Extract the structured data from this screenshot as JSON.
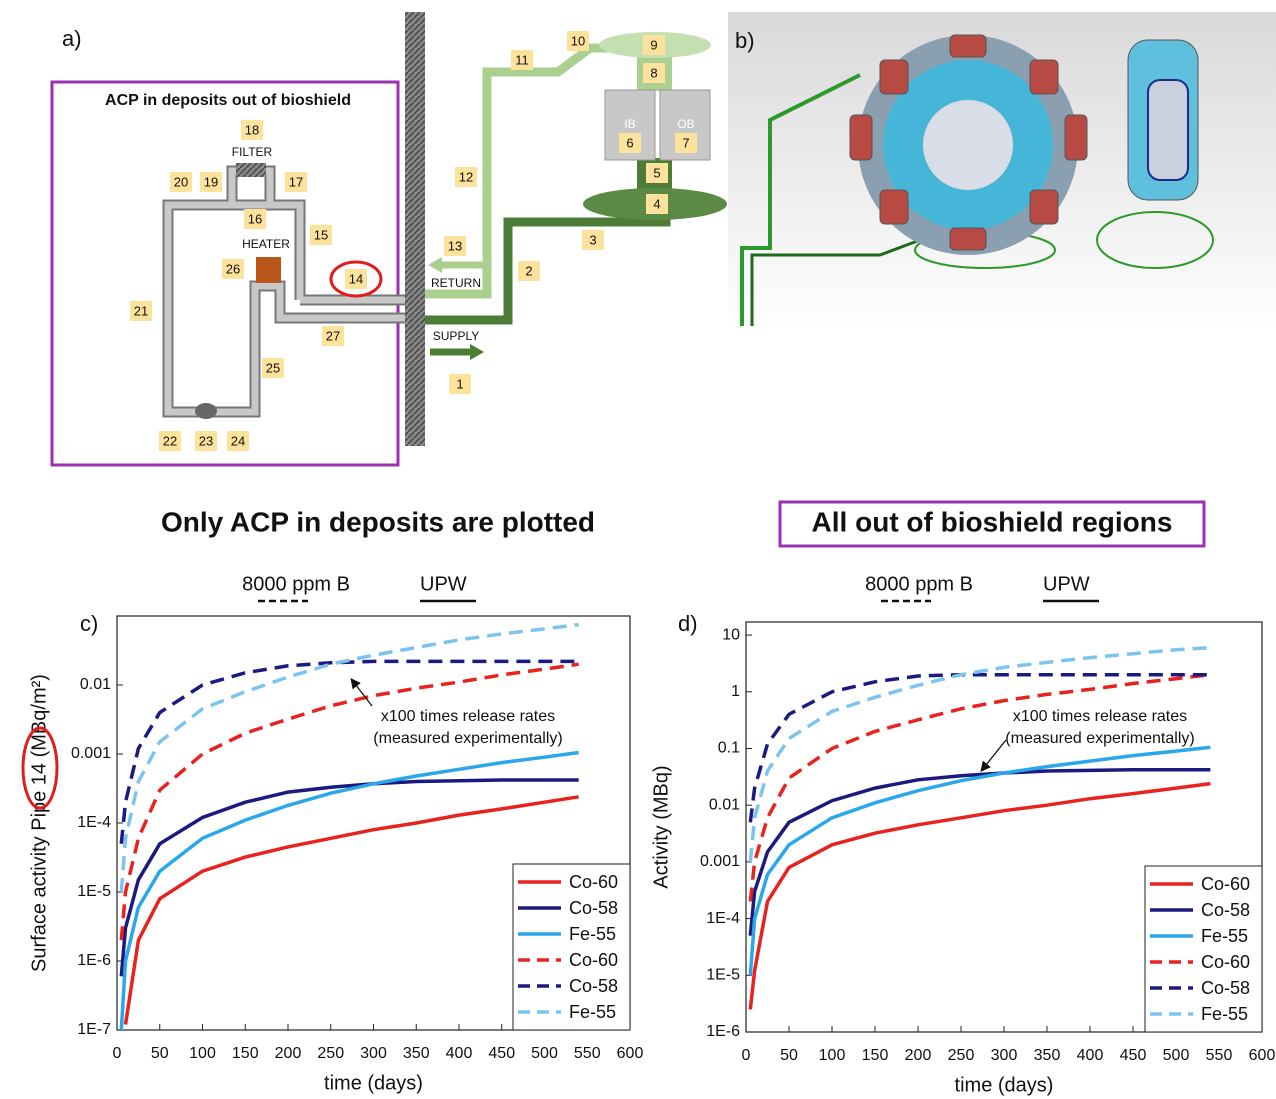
{
  "panel_a": {
    "label": "a)",
    "title": "ACP in deposits out of bioshield",
    "filter": "FILTER",
    "heater": "HEATER",
    "return": "RETURN",
    "supply": "SUPPLY",
    "ib": "IB",
    "ob": "OB",
    "nodes": [
      "1",
      "2",
      "3",
      "4",
      "5",
      "6",
      "7",
      "8",
      "9",
      "10",
      "11",
      "12",
      "13",
      "14",
      "15",
      "16",
      "17",
      "18",
      "19",
      "20",
      "21",
      "22",
      "23",
      "24",
      "25",
      "26",
      "27"
    ]
  },
  "panel_b": {
    "label": "b)"
  },
  "chart_data": [
    {
      "type": "line",
      "panel_label": "c)",
      "title": "Only ACP in deposits are plotted",
      "legend_header": [
        "8000 ppm B",
        "UPW"
      ],
      "annotation": [
        "x100 times release rates",
        "(measured experimentally)"
      ],
      "xlabel": "time (days)",
      "ylabel": "Surface activity Pipe 14 (MBq/m²)",
      "ylog": true,
      "legend": "lower right",
      "xlim": [
        0,
        600
      ],
      "xticks": [
        0,
        50,
        100,
        150,
        200,
        250,
        300,
        350,
        400,
        450,
        500,
        550,
        600
      ],
      "ylim": [
        1e-07,
        0.1
      ],
      "yticks": [
        {
          "value": 1e-07,
          "label": "1E-7"
        },
        {
          "value": 1e-06,
          "label": "1E-6"
        },
        {
          "value": 1e-05,
          "label": "1E-5"
        },
        {
          "value": 0.0001,
          "label": "1E-4"
        },
        0.001,
        0.01
      ],
      "x": [
        5,
        10,
        25,
        50,
        100,
        150,
        200,
        250,
        300,
        350,
        400,
        450,
        500,
        540
      ],
      "series": [
        {
          "name": "Co-60",
          "color": "#e8221f",
          "dashed": false,
          "values": [
            null,
            1.2e-07,
            2e-06,
            8e-06,
            2e-05,
            3.2e-05,
            4.5e-05,
            6e-05,
            8e-05,
            0.0001,
            0.00013,
            0.00016,
            0.0002,
            0.00024
          ]
        },
        {
          "name": "Co-58",
          "color": "#1a1a80",
          "dashed": false,
          "values": [
            6e-07,
            3e-06,
            1.5e-05,
            5e-05,
            0.00012,
            0.0002,
            0.00028,
            0.00033,
            0.00037,
            0.0004,
            0.00041,
            0.00042,
            0.00042,
            0.00042
          ]
        },
        {
          "name": "Fe-55",
          "color": "#2aa7ea",
          "dashed": false,
          "values": [
            1e-07,
            1e-06,
            6e-06,
            2e-05,
            6e-05,
            0.00011,
            0.00018,
            0.00027,
            0.00037,
            0.00048,
            0.0006,
            0.00075,
            0.0009,
            0.00105
          ]
        },
        {
          "name": "Co-60",
          "color": "#e8221f",
          "dashed": true,
          "values": [
            2e-06,
            1e-05,
            6e-05,
            0.0003,
            0.001,
            0.002,
            0.0032,
            0.005,
            0.007,
            0.009,
            0.011,
            0.014,
            0.017,
            0.02
          ]
        },
        {
          "name": "Co-58",
          "color": "#1a1a80",
          "dashed": true,
          "values": [
            5e-05,
            0.0002,
            0.0012,
            0.004,
            0.01,
            0.015,
            0.019,
            0.021,
            0.022,
            0.022,
            0.022,
            0.022,
            0.022,
            0.022
          ]
        },
        {
          "name": "Fe-55",
          "color": "#7cc4f0",
          "dashed": true,
          "values": [
            1e-05,
            6e-05,
            0.0004,
            0.0015,
            0.0045,
            0.008,
            0.013,
            0.02,
            0.027,
            0.035,
            0.045,
            0.055,
            0.065,
            0.075
          ]
        }
      ]
    },
    {
      "type": "line",
      "panel_label": "d)",
      "title": "All out of bioshield regions",
      "legend_header": [
        "8000 ppm B",
        "UPW"
      ],
      "annotation": [
        "x100 times release rates",
        "(measured experimentally)"
      ],
      "xlabel": "time (days)",
      "ylabel": "Activity (MBq)",
      "ylog": true,
      "legend": "lower right",
      "xlim": [
        0,
        600
      ],
      "xticks": [
        0,
        50,
        100,
        150,
        200,
        250,
        300,
        350,
        400,
        450,
        500,
        550,
        600
      ],
      "ylim": [
        1e-06,
        17
      ],
      "yticks": [
        {
          "value": 1e-06,
          "label": "1E-6"
        },
        {
          "value": 1e-05,
          "label": "1E-5"
        },
        {
          "value": 0.0001,
          "label": "1E-4"
        },
        0.001,
        0.01,
        0.1,
        1,
        10
      ],
      "x": [
        5,
        10,
        25,
        50,
        100,
        150,
        200,
        250,
        300,
        350,
        400,
        450,
        500,
        540
      ],
      "series": [
        {
          "name": "Co-60",
          "color": "#e8221f",
          "dashed": false,
          "values": [
            2.5e-06,
            1.2e-05,
            0.0002,
            0.0008,
            0.002,
            0.0032,
            0.0045,
            0.006,
            0.008,
            0.01,
            0.013,
            0.016,
            0.02,
            0.024
          ]
        },
        {
          "name": "Co-58",
          "color": "#1a1a80",
          "dashed": false,
          "values": [
            5e-05,
            0.0003,
            0.0015,
            0.005,
            0.012,
            0.02,
            0.028,
            0.033,
            0.037,
            0.04,
            0.041,
            0.042,
            0.042,
            0.042
          ]
        },
        {
          "name": "Fe-55",
          "color": "#2aa7ea",
          "dashed": false,
          "values": [
            1e-05,
            0.0001,
            0.0006,
            0.002,
            0.006,
            0.011,
            0.018,
            0.027,
            0.037,
            0.048,
            0.06,
            0.075,
            0.09,
            0.105
          ]
        },
        {
          "name": "Co-60",
          "color": "#e8221f",
          "dashed": true,
          "values": [
            0.0002,
            0.001,
            0.006,
            0.03,
            0.1,
            0.2,
            0.32,
            0.5,
            0.7,
            0.9,
            1.1,
            1.4,
            1.7,
            2
          ]
        },
        {
          "name": "Co-58",
          "color": "#1a1a80",
          "dashed": true,
          "values": [
            0.005,
            0.02,
            0.12,
            0.4,
            1,
            1.5,
            1.9,
            2,
            2,
            2,
            2,
            2,
            2,
            2
          ]
        },
        {
          "name": "Fe-55",
          "color": "#7cc4f0",
          "dashed": true,
          "values": [
            0.001,
            0.006,
            0.04,
            0.15,
            0.45,
            0.8,
            1.3,
            2,
            2.7,
            3.3,
            4,
            4.7,
            5.5,
            6
          ]
        }
      ]
    }
  ]
}
